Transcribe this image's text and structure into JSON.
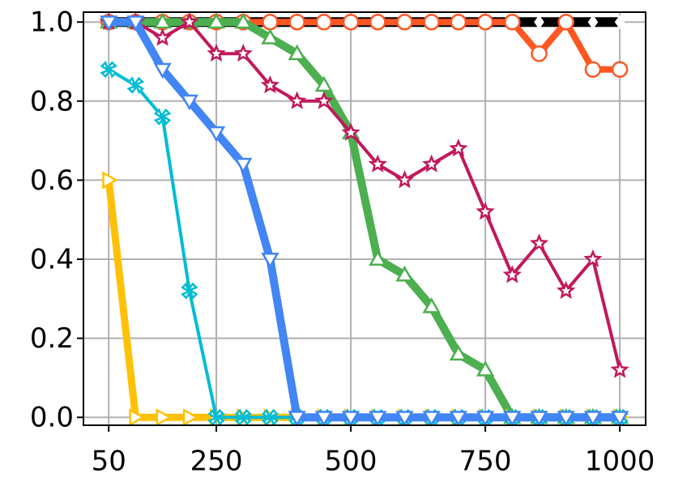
{
  "chart_data": {
    "type": "line",
    "x": [
      50,
      100,
      150,
      200,
      250,
      300,
      350,
      400,
      450,
      500,
      550,
      600,
      650,
      700,
      750,
      800,
      850,
      900,
      950,
      1000
    ],
    "series": [
      {
        "color": "#000000",
        "marker": "diamond",
        "values": [
          1,
          1,
          1,
          1,
          1,
          1,
          1,
          1,
          1,
          1,
          1,
          1,
          1,
          1,
          1,
          1,
          1,
          1,
          1,
          1
        ]
      },
      {
        "color": "#ff5722",
        "marker": "circle",
        "values": [
          1,
          1,
          1,
          1,
          1,
          1,
          1,
          1,
          1,
          1,
          1,
          1,
          1,
          1,
          1,
          1,
          0.92,
          1,
          0.88,
          0.88
        ]
      },
      {
        "color": "#4caf50",
        "marker": "triangle-up",
        "values": [
          1,
          1,
          1,
          1,
          1,
          1,
          0.96,
          0.92,
          0.84,
          0.72,
          0.4,
          0.36,
          0.28,
          0.16,
          0.12,
          0,
          0,
          0,
          0,
          0
        ]
      },
      {
        "color": "#c2185b",
        "marker": "star",
        "values": [
          1,
          1,
          0.96,
          1,
          0.92,
          0.92,
          0.84,
          0.8,
          0.8,
          0.72,
          0.64,
          0.6,
          0.64,
          0.68,
          0.52,
          0.36,
          0.44,
          0.32,
          0.4,
          0.12
        ]
      },
      {
        "color": "#ffc107",
        "marker": "triangle-right",
        "values": [
          0.6,
          0,
          0,
          0,
          0,
          0,
          0,
          0,
          0,
          0,
          0,
          0,
          0,
          0,
          0,
          0,
          0,
          0,
          0,
          0
        ]
      },
      {
        "color": "#00bcd4",
        "marker": "x",
        "values": [
          0.88,
          0.84,
          0.76,
          0.32,
          0,
          0,
          0,
          0,
          0,
          0,
          0,
          0,
          0,
          0,
          0,
          0,
          0,
          0,
          0,
          0
        ]
      },
      {
        "color": "#4285f4",
        "marker": "triangle-down",
        "values": [
          1,
          1,
          0.88,
          0.8,
          0.72,
          0.64,
          0.4,
          0,
          0,
          0,
          0,
          0,
          0,
          0,
          0,
          0,
          0,
          0,
          0,
          0
        ]
      }
    ],
    "xlim": [
      3,
      1048
    ],
    "ylim": [
      -0.02,
      1.025
    ],
    "xticks": [
      50,
      250,
      500,
      750,
      1000
    ],
    "yticks": [
      {
        "value": 0,
        "label": "0.0"
      },
      {
        "value": 0.2,
        "label": "0.2"
      },
      {
        "value": 0.4,
        "label": "0.4"
      },
      {
        "value": 0.6,
        "label": "0.6"
      },
      {
        "value": 0.8,
        "label": "0.8"
      },
      {
        "value": 1.0,
        "label": "1.0"
      }
    ],
    "grid": true
  }
}
